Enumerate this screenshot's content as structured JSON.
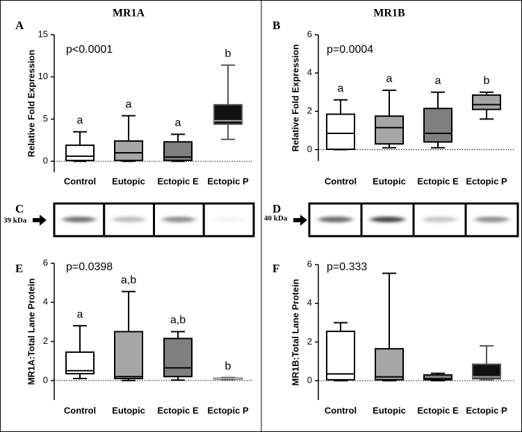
{
  "chart_data": [
    {
      "type": "box",
      "panel_label": "A",
      "title": "MR1A",
      "annotation": "p<0.0001",
      "y_label": "Relative Fold Expression",
      "categories": [
        "Control",
        "Eutopic",
        "Ectopic E",
        "Ectopic P"
      ],
      "whisker_low": [
        0,
        0,
        0,
        2.6
      ],
      "q1": [
        0.1,
        0.1,
        0.1,
        4.4
      ],
      "median": [
        0.6,
        1.0,
        0.5,
        4.8
      ],
      "q3": [
        1.9,
        2.4,
        2.3,
        6.7
      ],
      "whisker_high": [
        3.5,
        5.4,
        3.2,
        11.4
      ],
      "colors": [
        "#ffffff",
        "#a6a6a6",
        "#7f7f7f",
        "#111111"
      ],
      "letters": [
        "a",
        "a",
        "a",
        "b"
      ],
      "ylim": [
        -1.3,
        15
      ],
      "yticks": [
        0,
        5,
        10,
        15
      ],
      "zero_line": true
    },
    {
      "type": "box",
      "panel_label": "B",
      "title": "MR1B",
      "annotation": "p=0.0004",
      "y_label": "Relative Fold Expression",
      "categories": [
        "Control",
        "Eutopic",
        "Ectopic E",
        "Ectopic P"
      ],
      "whisker_low": [
        0,
        0.1,
        0.1,
        1.6
      ],
      "q1": [
        0.02,
        0.3,
        0.4,
        2.1
      ],
      "median": [
        0.85,
        1.15,
        0.85,
        2.35
      ],
      "q3": [
        1.85,
        1.75,
        2.15,
        2.85
      ],
      "whisker_high": [
        2.6,
        3.1,
        3.0,
        3.0
      ],
      "colors": [
        "#ffffff",
        "#a6a6a6",
        "#7f7f7f",
        "#a6a6a6"
      ],
      "letters": [
        "a",
        "a",
        "a",
        "b"
      ],
      "ylim": [
        -0.6,
        6
      ],
      "yticks": [
        0,
        2,
        4,
        6
      ],
      "zero_line": true
    },
    {
      "type": "blot",
      "panel_label": "C",
      "marker_label": "39 kDa"
    },
    {
      "type": "blot",
      "panel_label": "D",
      "marker_label": "40 kDa"
    },
    {
      "type": "box",
      "panel_label": "E",
      "annotation": "p=0.0398",
      "y_label": "MR1A:Total Lane Protein",
      "categories": [
        "Control",
        "Eutopic",
        "Ectopic E",
        "Ectopic P"
      ],
      "whisker_low": [
        0.1,
        0,
        0.02,
        0.05
      ],
      "q1": [
        0.35,
        0.1,
        0.2,
        0.08
      ],
      "median": [
        0.5,
        0.2,
        0.65,
        0.1
      ],
      "q3": [
        1.45,
        2.5,
        2.15,
        0.12
      ],
      "whisker_high": [
        2.8,
        4.55,
        2.5,
        0.15
      ],
      "colors": [
        "#ffffff",
        "#a6a6a6",
        "#7f7f7f",
        "#111111"
      ],
      "letters": [
        "a",
        "a,b",
        "a,b",
        "b"
      ],
      "ylim": [
        -1,
        6
      ],
      "yticks": [
        0,
        2,
        4,
        6
      ],
      "zero_line": true
    },
    {
      "type": "box",
      "panel_label": "F",
      "annotation": "p=0.333",
      "y_label": "MR1B:Total Lane Protein",
      "categories": [
        "Control",
        "Eutopic",
        "Ectopic E",
        "Ectopic P"
      ],
      "whisker_low": [
        0,
        0,
        0,
        0.05
      ],
      "q1": [
        0.05,
        0.05,
        0.05,
        0.1
      ],
      "median": [
        0.35,
        0.2,
        0.1,
        0.2
      ],
      "q3": [
        2.55,
        1.65,
        0.3,
        0.85
      ],
      "whisker_high": [
        3.0,
        5.55,
        0.38,
        1.8
      ],
      "colors": [
        "#ffffff",
        "#a6a6a6",
        "#7f7f7f",
        "#111111"
      ],
      "ylim": [
        -1,
        6
      ],
      "yticks": [
        0,
        2,
        4,
        6
      ],
      "zero_line": true
    }
  ]
}
